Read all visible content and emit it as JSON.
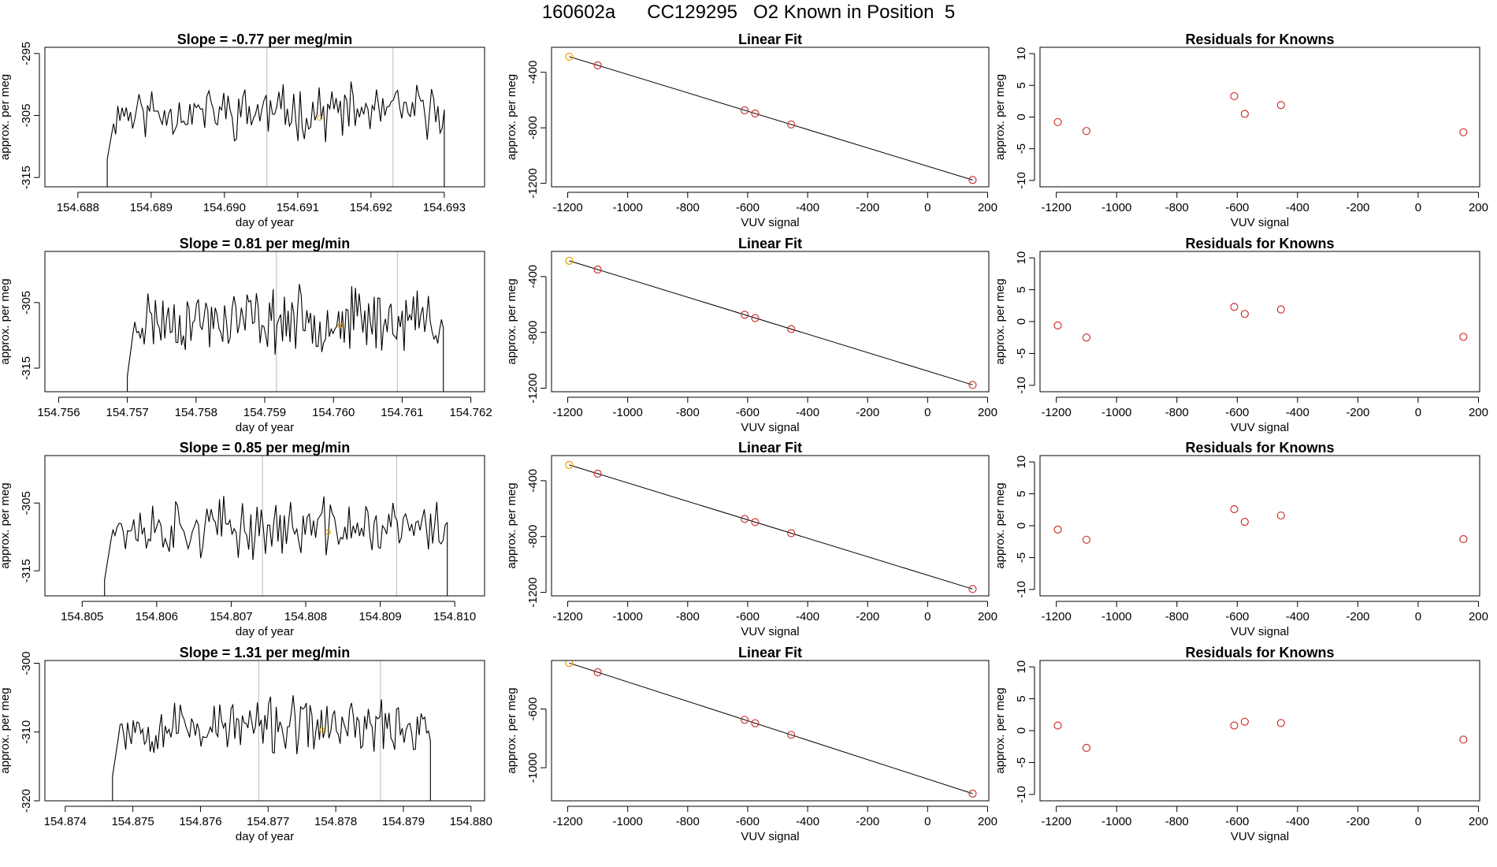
{
  "title_parts": [
    "160602a",
    "CC129295",
    "O2 Known in Position  5"
  ],
  "colors": {
    "line": "#000000",
    "axis": "#000000",
    "vline": "#bbbbbb",
    "known_point": "#cc3333",
    "highlight": "#e8a000"
  },
  "chart_data": [
    {
      "type": "line",
      "row": 0,
      "title": "Slope =  -0.77  per meg/min",
      "xlabel": "day of year",
      "ylabel": "approx. per meg",
      "xlim": [
        154.68755,
        154.69355
      ],
      "ylim": [
        -316.5,
        -294
      ],
      "xticks": [
        154.688,
        154.689,
        154.69,
        154.691,
        154.692,
        154.693
      ],
      "xtick_labels": [
        "154.688",
        "154.689",
        "154.690",
        "154.691",
        "154.692",
        "154.693"
      ],
      "yticks": [
        -295,
        -305,
        -315
      ],
      "ytick_labels": [
        "-295",
        "-305",
        "-315"
      ],
      "x_start": 154.6884,
      "x_end": 154.693,
      "n_points": 160,
      "mean": -304.4,
      "amp": 3.2,
      "seed": 11,
      "vlines": [
        154.69058,
        154.6923
      ],
      "highlight": {
        "x": 154.6913,
        "y": -305.4
      }
    },
    {
      "type": "line",
      "row": 1,
      "title": "Slope =  0.81  per meg/min",
      "xlabel": "day of year",
      "ylabel": "approx. per meg",
      "xlim": [
        154.7558,
        154.7622
      ],
      "ylim": [
        -318.6,
        -297.2
      ],
      "xticks": [
        154.756,
        154.757,
        154.758,
        154.759,
        154.76,
        154.761,
        154.762
      ],
      "xtick_labels": [
        "154.756",
        "154.757",
        "154.758",
        "154.759",
        "154.760",
        "154.761",
        "154.762"
      ],
      "yticks": [
        -305,
        -315
      ],
      "ytick_labels": [
        "-305",
        "-315"
      ],
      "x_start": 154.757,
      "x_end": 154.7616,
      "n_points": 170,
      "mean": -307.6,
      "amp": 3.6,
      "seed": 23,
      "vlines": [
        154.75917,
        154.76093
      ],
      "highlight": {
        "x": 154.7601,
        "y": -308.5
      }
    },
    {
      "type": "line",
      "row": 2,
      "title": "Slope =  0.85  per meg/min",
      "xlabel": "day of year",
      "ylabel": "approx. per meg",
      "xlim": [
        154.8045,
        154.8104
      ],
      "ylim": [
        -318.7,
        -298
      ],
      "xticks": [
        154.805,
        154.806,
        154.807,
        154.808,
        154.809,
        154.81
      ],
      "xtick_labels": [
        "154.805",
        "154.806",
        "154.807",
        "154.808",
        "154.809",
        "154.810"
      ],
      "yticks": [
        -305,
        -315
      ],
      "ytick_labels": [
        "-305",
        "-315"
      ],
      "x_start": 154.8053,
      "x_end": 154.8099,
      "n_points": 165,
      "mean": -308.7,
      "amp": 3.2,
      "seed": 37,
      "vlines": [
        154.80742,
        154.80922
      ],
      "highlight": {
        "x": 154.8083,
        "y": -309.3
      }
    },
    {
      "type": "line",
      "row": 3,
      "title": "Slope =  1.31  per meg/min",
      "xlabel": "day of year",
      "ylabel": "approx. per meg",
      "xlim": [
        154.8737,
        154.8802
      ],
      "ylim": [
        -320,
        -299.6
      ],
      "xticks": [
        154.874,
        154.875,
        154.876,
        154.877,
        154.878,
        154.879,
        154.88
      ],
      "xtick_labels": [
        "154.874",
        "154.875",
        "154.876",
        "154.877",
        "154.878",
        "154.879",
        "154.880"
      ],
      "yticks": [
        -300,
        -310,
        -320
      ],
      "ytick_labels": [
        "-300",
        "-310",
        "-320"
      ],
      "x_start": 154.8747,
      "x_end": 154.8794,
      "n_points": 170,
      "mean": -309.2,
      "amp": 3.0,
      "seed": 53,
      "vlines": [
        154.87686,
        154.87866
      ],
      "highlight": {
        "x": 154.8778,
        "y": -309.7
      }
    },
    {
      "type": "scatter",
      "row": 0,
      "title": "Linear Fit",
      "xlabel": "VUV signal",
      "ylabel": "approx. per meg",
      "xlim": [
        -1254,
        204
      ],
      "ylim": [
        -1225,
        -220
      ],
      "xticks": [
        -1200,
        -1000,
        -800,
        -600,
        -400,
        -200,
        0,
        200
      ],
      "xtick_labels": [
        "-1200",
        "-1000",
        "-800",
        "-600",
        "-400",
        "-200",
        "0",
        "200"
      ],
      "yticks": [
        -400,
        -800,
        -1200
      ],
      "ytick_labels": [
        "-400",
        "-800",
        "-1200"
      ],
      "points": [
        [
          -1100,
          -350
        ],
        [
          -610,
          -674
        ],
        [
          -575,
          -697
        ],
        [
          -455,
          -776
        ],
        [
          150,
          -1176
        ]
      ],
      "highlight": [
        -1195,
        -287
      ],
      "fit": [
        [
          -1195,
          -287
        ],
        [
          150,
          -1176
        ]
      ]
    },
    {
      "type": "scatter",
      "row": 1,
      "title": "Linear Fit",
      "xlabel": "VUV signal",
      "ylabel": "approx. per meg",
      "xlim": [
        -1254,
        204
      ],
      "ylim": [
        -1225,
        -220
      ],
      "xticks": [
        -1200,
        -1000,
        -800,
        -600,
        -400,
        -200,
        0,
        200
      ],
      "xtick_labels": [
        "-1200",
        "-1000",
        "-800",
        "-600",
        "-400",
        "-200",
        "0",
        "200"
      ],
      "yticks": [
        -400,
        -800,
        -1200
      ],
      "ytick_labels": [
        "-400",
        "-800",
        "-1200"
      ],
      "points": [
        [
          -1100,
          -350
        ],
        [
          -610,
          -674
        ],
        [
          -575,
          -697
        ],
        [
          -455,
          -776
        ],
        [
          150,
          -1176
        ]
      ],
      "highlight": [
        -1195,
        -287
      ],
      "fit": [
        [
          -1195,
          -287
        ],
        [
          150,
          -1176
        ]
      ]
    },
    {
      "type": "scatter",
      "row": 2,
      "title": "Linear Fit",
      "xlabel": "VUV signal",
      "ylabel": "approx. per meg",
      "xlim": [
        -1254,
        204
      ],
      "ylim": [
        -1225,
        -220
      ],
      "xticks": [
        -1200,
        -1000,
        -800,
        -600,
        -400,
        -200,
        0,
        200
      ],
      "xtick_labels": [
        "-1200",
        "-1000",
        "-800",
        "-600",
        "-400",
        "-200",
        "0",
        "200"
      ],
      "yticks": [
        -400,
        -800,
        -1200
      ],
      "ytick_labels": [
        "-400",
        "-800",
        "-1200"
      ],
      "points": [
        [
          -1100,
          -350
        ],
        [
          -610,
          -674
        ],
        [
          -575,
          -697
        ],
        [
          -455,
          -776
        ],
        [
          150,
          -1176
        ]
      ],
      "highlight": [
        -1195,
        -287
      ],
      "fit": [
        [
          -1195,
          -287
        ],
        [
          150,
          -1176
        ]
      ]
    },
    {
      "type": "scatter",
      "row": 3,
      "title": "Linear Fit",
      "xlabel": "VUV signal",
      "ylabel": "approx. per meg",
      "xlim": [
        -1254,
        204
      ],
      "ylim": [
        -1225,
        -270
      ],
      "xticks": [
        -1200,
        -1000,
        -800,
        -600,
        -400,
        -200,
        0,
        200
      ],
      "xtick_labels": [
        "-1200",
        "-1000",
        "-800",
        "-600",
        "-400",
        "-200",
        "0",
        "200"
      ],
      "yticks": [
        -600,
        -1000
      ],
      "ytick_labels": [
        "-600",
        "-1000"
      ],
      "points": [
        [
          -1100,
          -350
        ],
        [
          -610,
          -674
        ],
        [
          -575,
          -697
        ],
        [
          -455,
          -776
        ],
        [
          150,
          -1176
        ]
      ],
      "highlight": [
        -1195,
        -287
      ],
      "fit": [
        [
          -1195,
          -287
        ],
        [
          150,
          -1176
        ]
      ]
    },
    {
      "type": "scatter",
      "row": 0,
      "title": "Residuals for Knowns",
      "xlabel": "VUV signal",
      "ylabel": "approx. per meg",
      "xlim": [
        -1254,
        204
      ],
      "ylim": [
        -11,
        11
      ],
      "xticks": [
        -1200,
        -1000,
        -800,
        -600,
        -400,
        -200,
        0,
        200
      ],
      "xtick_labels": [
        "-1200",
        "-1000",
        "-800",
        "-600",
        "-400",
        "-200",
        "0",
        "200"
      ],
      "yticks": [
        10,
        5,
        0,
        -5,
        -10
      ],
      "ytick_labels": [
        "10",
        "5",
        "0",
        "-5",
        "-10"
      ],
      "points": [
        [
          -1195,
          -0.8
        ],
        [
          -1100,
          -2.2
        ],
        [
          -610,
          3.3
        ],
        [
          -575,
          0.5
        ],
        [
          -455,
          1.9
        ],
        [
          150,
          -2.4
        ]
      ]
    },
    {
      "type": "scatter",
      "row": 1,
      "title": "Residuals for Knowns",
      "xlabel": "VUV signal",
      "ylabel": "approx. per meg",
      "xlim": [
        -1254,
        204
      ],
      "ylim": [
        -11,
        11
      ],
      "xticks": [
        -1200,
        -1000,
        -800,
        -600,
        -400,
        -200,
        0,
        200
      ],
      "xtick_labels": [
        "-1200",
        "-1000",
        "-800",
        "-600",
        "-400",
        "-200",
        "0",
        "200"
      ],
      "yticks": [
        10,
        5,
        0,
        -5,
        -10
      ],
      "ytick_labels": [
        "10",
        "5",
        "0",
        "-5",
        "-10"
      ],
      "points": [
        [
          -1195,
          -0.6
        ],
        [
          -1100,
          -2.5
        ],
        [
          -610,
          2.3
        ],
        [
          -575,
          1.2
        ],
        [
          -455,
          1.9
        ],
        [
          150,
          -2.4
        ]
      ]
    },
    {
      "type": "scatter",
      "row": 2,
      "title": "Residuals for Knowns",
      "xlabel": "VUV signal",
      "ylabel": "approx. per meg",
      "xlim": [
        -1254,
        204
      ],
      "ylim": [
        -11,
        11
      ],
      "xticks": [
        -1200,
        -1000,
        -800,
        -600,
        -400,
        -200,
        0,
        200
      ],
      "xtick_labels": [
        "-1200",
        "-1000",
        "-800",
        "-600",
        "-400",
        "-200",
        "0",
        "200"
      ],
      "yticks": [
        10,
        5,
        0,
        -5,
        -10
      ],
      "ytick_labels": [
        "10",
        "5",
        "0",
        "-5",
        "-10"
      ],
      "points": [
        [
          -1195,
          -0.6
        ],
        [
          -1100,
          -2.2
        ],
        [
          -610,
          2.6
        ],
        [
          -575,
          0.6
        ],
        [
          -455,
          1.6
        ],
        [
          150,
          -2.1
        ]
      ]
    },
    {
      "type": "scatter",
      "row": 3,
      "title": "Residuals for Knowns",
      "xlabel": "VUV signal",
      "ylabel": "approx. per meg",
      "xlim": [
        -1254,
        204
      ],
      "ylim": [
        -11,
        11
      ],
      "xticks": [
        -1200,
        -1000,
        -800,
        -600,
        -400,
        -200,
        0,
        200
      ],
      "xtick_labels": [
        "-1200",
        "-1000",
        "-800",
        "-600",
        "-400",
        "-200",
        "0",
        "200"
      ],
      "yticks": [
        10,
        5,
        0,
        -5,
        -10
      ],
      "ytick_labels": [
        "10",
        "5",
        "0",
        "-5",
        "-10"
      ],
      "points": [
        [
          -1195,
          0.8
        ],
        [
          -1100,
          -2.7
        ],
        [
          -610,
          0.8
        ],
        [
          -575,
          1.4
        ],
        [
          -455,
          1.2
        ],
        [
          150,
          -1.4
        ]
      ]
    }
  ]
}
